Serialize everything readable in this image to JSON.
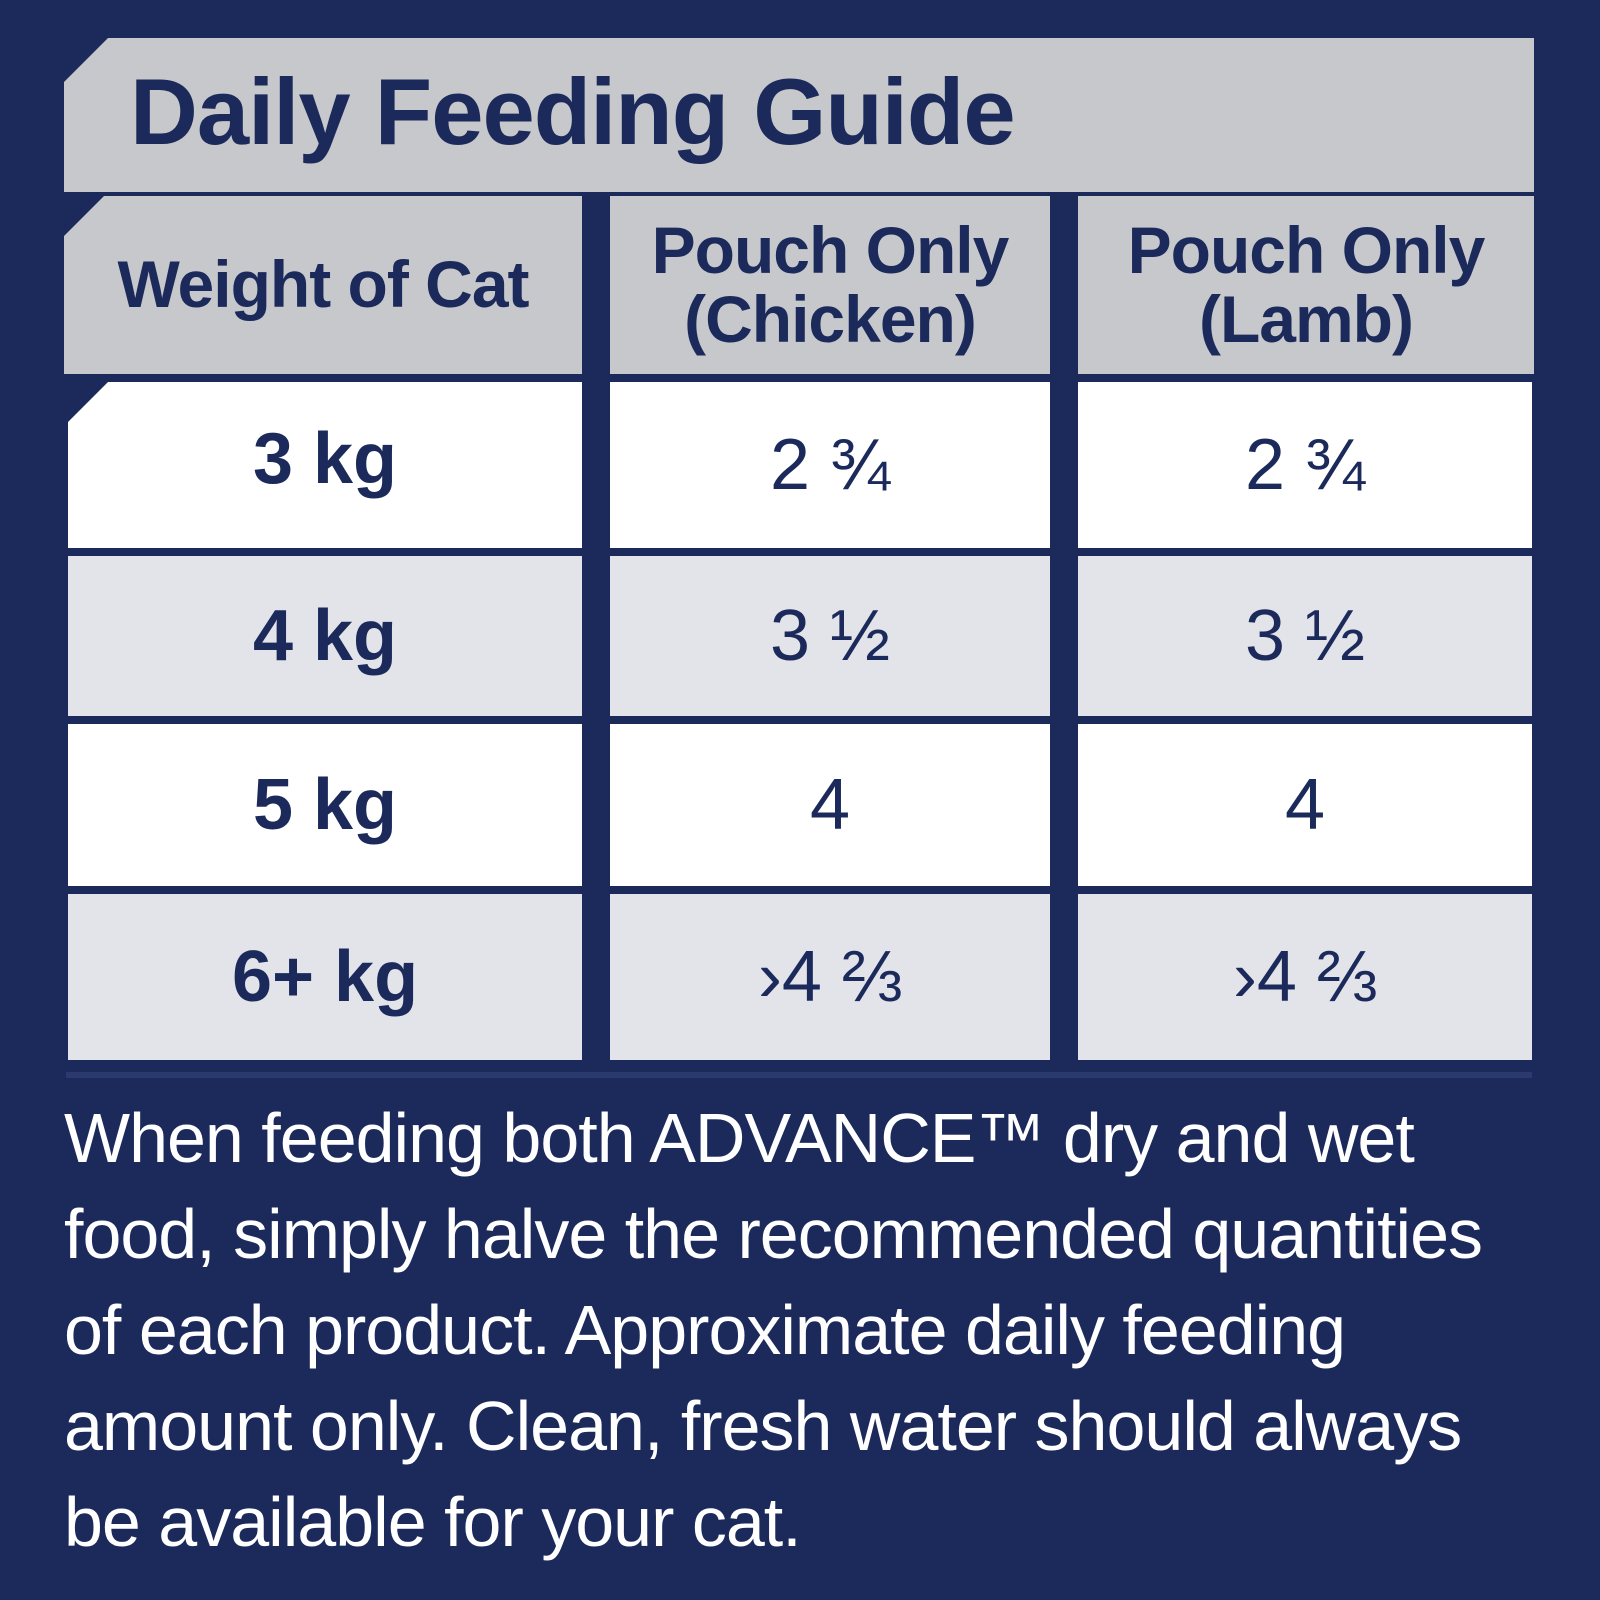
{
  "title": "Daily Feeding Guide",
  "table": {
    "headers": [
      "Weight of Cat",
      "Pouch Only (Chicken)",
      "Pouch Only (Lamb)"
    ],
    "rows": [
      {
        "weight": "3 kg",
        "chicken": "2 ¾",
        "lamb": "2 ¾"
      },
      {
        "weight": "4 kg",
        "chicken": "3 ½",
        "lamb": "3 ½"
      },
      {
        "weight": "5 kg",
        "chicken": "4",
        "lamb": "4"
      },
      {
        "weight": "6+ kg",
        "chicken": "›4 ⅔",
        "lamb": "›4 ⅔"
      }
    ]
  },
  "note": "When feeding both ADVANCE™ dry and wet food, simply halve the recommended quantities of each product.  Approximate daily feeding amount only.  Clean, fresh water should always be available for your cat."
}
